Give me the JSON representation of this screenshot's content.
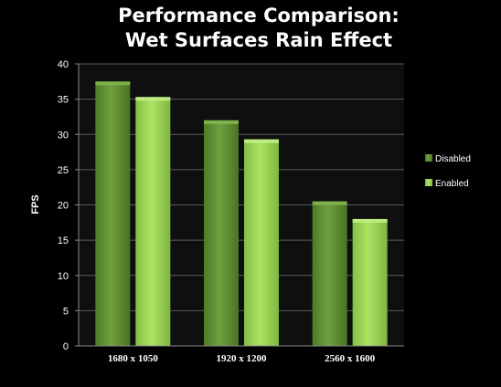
{
  "chart_data": {
    "type": "bar",
    "title_lines": [
      "Performance Comparison:",
      "Wet Surfaces Rain Effect"
    ],
    "xlabel": "",
    "ylabel": "FPS",
    "categories": [
      "1680 x 1050",
      "1920 x 1200",
      "2560 x 1600"
    ],
    "series": [
      {
        "name": "Disabled",
        "values": [
          37.5,
          32,
          20.5
        ],
        "color": "#6b9a3a"
      },
      {
        "name": "Enabled",
        "values": [
          35.3,
          29.3,
          18
        ],
        "color": "#a4d95e"
      }
    ],
    "ylim": [
      0,
      40
    ],
    "yticks": [
      0,
      5,
      10,
      15,
      20,
      25,
      30,
      35,
      40
    ],
    "grid": true,
    "legend_position": "right",
    "colors": {
      "background": "#000000",
      "plot_background": "#0f0f0f",
      "gridline": "#5a5a5a",
      "text": "#ffffff"
    }
  }
}
